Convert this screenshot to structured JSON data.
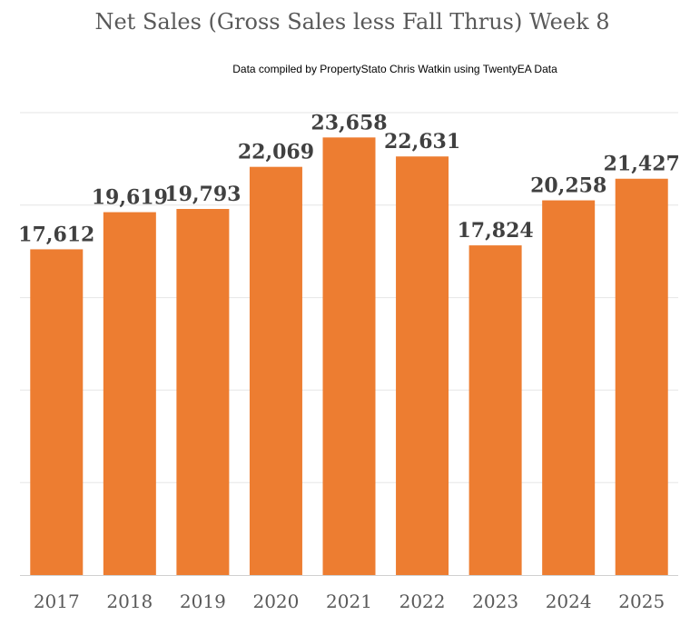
{
  "chart_data": {
    "type": "bar",
    "title": "Net Sales (Gross Sales less Fall Thrus)  Week 8",
    "subtitle": "Data compiled by PropertyStato Chris Watkin using TwentyEA Data",
    "categories": [
      "2017",
      "2018",
      "2019",
      "2020",
      "2021",
      "2022",
      "2023",
      "2024",
      "2025"
    ],
    "values": [
      17612,
      19619,
      19793,
      22069,
      23658,
      22631,
      17824,
      20258,
      21427
    ],
    "data_labels": [
      "17,612",
      "19,619",
      "19,793",
      "22,069",
      "23,658",
      "22,631",
      "17,824",
      "20,258",
      "21,427"
    ],
    "ylim": [
      0,
      25000
    ],
    "grid": true,
    "legend": "none",
    "colors": {
      "bar": "#ED7D31",
      "gridline": "#E6E6E6",
      "axis": "#D0D0D0"
    }
  }
}
